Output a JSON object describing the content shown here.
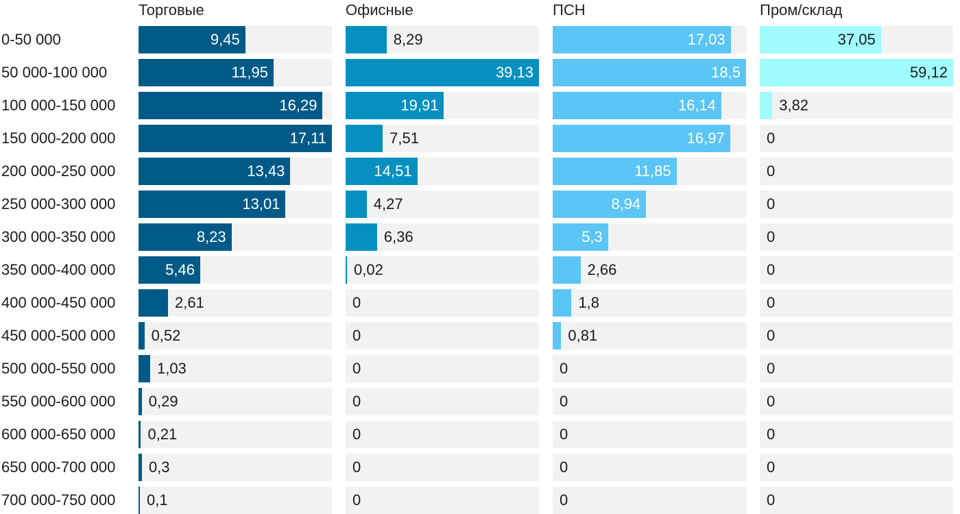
{
  "chart_data": {
    "type": "bar",
    "orientation": "horizontal",
    "layout": "small-multiples",
    "categories": [
      "0-50 000",
      "50 000-100 000",
      "100 000-150 000",
      "150 000-200 000",
      "200 000-250 000",
      "250 000-300 000",
      "300 000-350 000",
      "350 000-400 000",
      "400 000-450 000",
      "450 000-500 000",
      "500 000-550 000",
      "550 000-600 000",
      "600 000-650 000",
      "650 000-700 000",
      "700 000-750 000"
    ],
    "series": [
      {
        "name": "Торговые",
        "color": "#005a87",
        "max": 17.11,
        "values": [
          9.45,
          11.95,
          16.29,
          17.11,
          13.43,
          13.01,
          8.23,
          5.46,
          2.61,
          0.52,
          1.03,
          0.29,
          0.21,
          0.3,
          0.1
        ],
        "labels": [
          "9,45",
          "11,95",
          "16,29",
          "17,11",
          "13,43",
          "13,01",
          "8,23",
          "5,46",
          "2,61",
          "0,52",
          "1,03",
          "0,29",
          "0,21",
          "0,3",
          "0,1"
        ],
        "label_inside": [
          true,
          true,
          true,
          true,
          true,
          true,
          true,
          true,
          false,
          false,
          false,
          false,
          false,
          false,
          false
        ]
      },
      {
        "name": "Офисные",
        "color": "#0590c0",
        "max": 39.13,
        "values": [
          8.29,
          39.13,
          19.91,
          7.51,
          14.51,
          4.27,
          6.36,
          0.02,
          0,
          0,
          0,
          0,
          0,
          0,
          0
        ],
        "labels": [
          "8,29",
          "39,13",
          "19,91",
          "7,51",
          "14,51",
          "4,27",
          "6,36",
          "0,02",
          "0",
          "0",
          "0",
          "0",
          "0",
          "0",
          "0"
        ],
        "label_inside": [
          false,
          true,
          true,
          false,
          true,
          false,
          false,
          false,
          false,
          false,
          false,
          false,
          false,
          false,
          false
        ]
      },
      {
        "name": "ПСН",
        "color": "#5bc5f5",
        "max": 18.5,
        "values": [
          17.03,
          18.5,
          16.14,
          16.97,
          11.85,
          8.94,
          5.3,
          2.66,
          1.8,
          0.81,
          0,
          0,
          0,
          0,
          0
        ],
        "labels": [
          "17,03",
          "18,5",
          "16,14",
          "16,97",
          "11,85",
          "8,94",
          "5,3",
          "2,66",
          "1,8",
          "0,81",
          "0",
          "0",
          "0",
          "0",
          "0"
        ],
        "label_inside": [
          true,
          true,
          true,
          true,
          true,
          true,
          true,
          false,
          false,
          false,
          false,
          false,
          false,
          false,
          false
        ]
      },
      {
        "name": "Пром/склад",
        "color": "#a0fcff",
        "max": 59.12,
        "values": [
          37.05,
          59.12,
          3.82,
          0,
          0,
          0,
          0,
          0,
          0,
          0,
          0,
          0,
          0,
          0,
          0
        ],
        "labels": [
          "37,05",
          "59,12",
          "3,82",
          "0",
          "0",
          "0",
          "0",
          "0",
          "0",
          "0",
          "0",
          "0",
          "0",
          "0",
          "0"
        ],
        "label_inside": [
          true,
          true,
          false,
          false,
          false,
          false,
          false,
          false,
          false,
          false,
          false,
          false,
          false,
          false,
          false
        ],
        "inside_label_dark": true
      }
    ]
  }
}
